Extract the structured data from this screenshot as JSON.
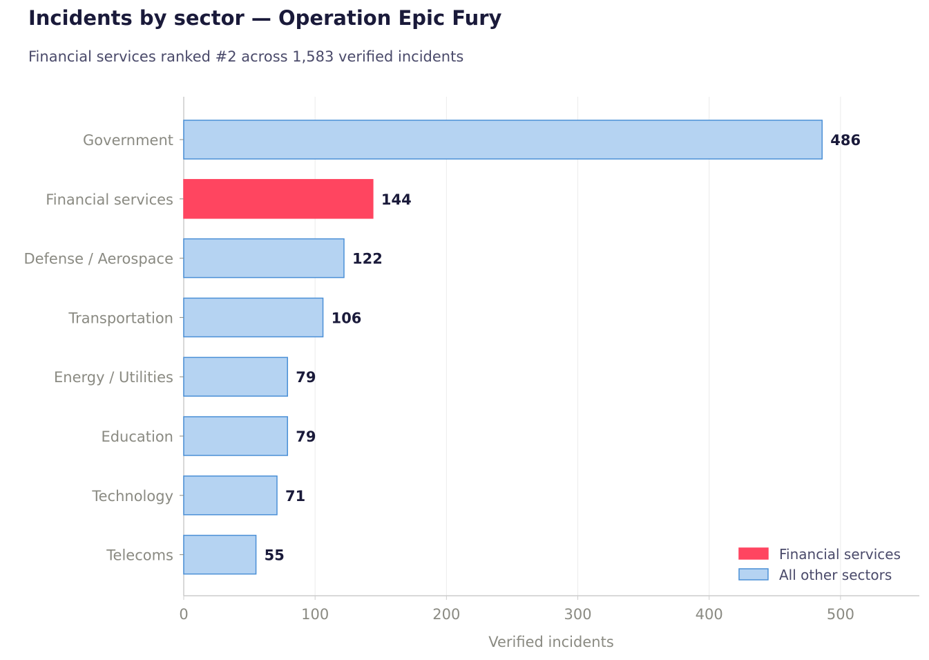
{
  "chart_data": {
    "type": "bar",
    "orientation": "horizontal",
    "title": "Incidents by sector — Operation Epic Fury",
    "subtitle": "Financial services ranked #2 across 1,583 verified incidents",
    "xlabel": "Verified incidents",
    "ylabel": "",
    "xlim": [
      0,
      560
    ],
    "xticks": [
      0,
      100,
      200,
      300,
      400,
      500
    ],
    "grid": "vertical",
    "legend_position": "bottom-right",
    "categories": [
      "Government",
      "Financial services",
      "Defense / Aerospace",
      "Transportation",
      "Energy / Utilities",
      "Education",
      "Technology",
      "Telecoms"
    ],
    "values": [
      486,
      144,
      122,
      106,
      79,
      79,
      71,
      55
    ],
    "highlight_category": "Financial services",
    "legend": [
      {
        "label": "Financial services",
        "fill": "#ff4560",
        "stroke": "#ff4560"
      },
      {
        "label": "All other sectors",
        "fill": "#b5d3f2",
        "stroke": "#4a8fd6"
      }
    ],
    "colors": {
      "highlight": "#ff4560",
      "bar_fill": "#b5d3f2",
      "bar_stroke": "#4a8fd6",
      "value_label": "#1a1a3a",
      "axis_text": "#8a8a82",
      "grid": "#ebebeb",
      "axis_line": "#cccccc"
    }
  }
}
